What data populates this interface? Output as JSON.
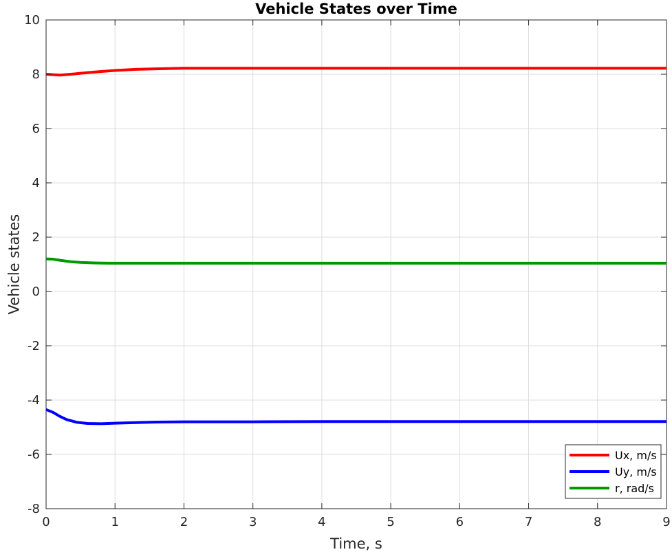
{
  "chart_data": {
    "type": "line",
    "title": "Vehicle States over Time",
    "xlabel": "Time, s",
    "ylabel": "Vehicle states",
    "xlim": [
      0,
      9
    ],
    "ylim": [
      -8,
      10
    ],
    "xticks": [
      0,
      1,
      2,
      3,
      4,
      5,
      6,
      7,
      8,
      9
    ],
    "yticks": [
      -8,
      -6,
      -4,
      -2,
      0,
      2,
      4,
      6,
      8,
      10
    ],
    "grid": true,
    "legend_position": "bottom-right",
    "series": [
      {
        "name": "Ux, m/s",
        "color": "#ff0000",
        "x": [
          0,
          0.2,
          0.4,
          0.6,
          0.8,
          1.0,
          1.3,
          1.6,
          2.0,
          3,
          4,
          5,
          6,
          7,
          8,
          9
        ],
        "y": [
          8.0,
          7.97,
          8.01,
          8.06,
          8.1,
          8.14,
          8.18,
          8.2,
          8.22,
          8.22,
          8.22,
          8.22,
          8.22,
          8.22,
          8.22,
          8.22
        ]
      },
      {
        "name": "Uy, m/s",
        "color": "#0000ff",
        "x": [
          0,
          0.1,
          0.2,
          0.3,
          0.45,
          0.6,
          0.8,
          1.0,
          1.3,
          1.6,
          2.0,
          3,
          4,
          5,
          6,
          7,
          8,
          9
        ],
        "y": [
          -4.35,
          -4.45,
          -4.6,
          -4.72,
          -4.82,
          -4.86,
          -4.87,
          -4.85,
          -4.83,
          -4.81,
          -4.8,
          -4.8,
          -4.79,
          -4.79,
          -4.79,
          -4.79,
          -4.79,
          -4.79
        ]
      },
      {
        "name": "r, rad/s",
        "color": "#009900",
        "x": [
          0,
          0.1,
          0.2,
          0.35,
          0.5,
          0.7,
          0.9,
          1.2,
          1.5,
          2,
          3,
          4,
          5,
          6,
          7,
          8,
          9
        ],
        "y": [
          1.2,
          1.19,
          1.15,
          1.1,
          1.07,
          1.05,
          1.04,
          1.04,
          1.04,
          1.04,
          1.04,
          1.04,
          1.04,
          1.04,
          1.04,
          1.04,
          1.04
        ]
      }
    ]
  }
}
